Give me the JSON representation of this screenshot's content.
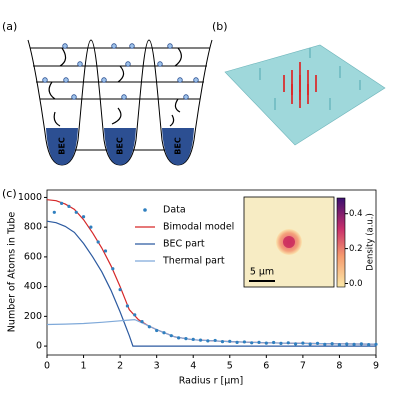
{
  "panels": {
    "a": "(a)",
    "b": "(b)",
    "c": "(c)"
  },
  "diagram": {
    "wells": [
      "BEC",
      "BEC",
      "BEC"
    ]
  },
  "chart_data": {
    "type": "scatter-line",
    "ylabel": "Number of Atoms in Tube",
    "xlabel": "Radius r [μm]",
    "xlim": [
      0,
      9
    ],
    "ylim": [
      -60,
      1050
    ],
    "xticks": [
      0,
      1,
      2,
      3,
      4,
      5,
      6,
      7,
      8,
      9
    ],
    "yticks": [
      0,
      200,
      400,
      600,
      800,
      1000
    ],
    "legend": "upper center",
    "series": [
      {
        "name": "Data",
        "color": "#2f7fbf",
        "kind": "scatter",
        "x": [
          0.2,
          0.4,
          0.6,
          0.8,
          1.0,
          1.2,
          1.4,
          1.6,
          1.8,
          2.0,
          2.2,
          2.4,
          2.6,
          2.8,
          3.0,
          3.2,
          3.4,
          3.6,
          3.8,
          4.0,
          4.2,
          4.4,
          4.6,
          4.8,
          5.0,
          5.2,
          5.4,
          5.6,
          5.8,
          6.0,
          6.2,
          6.4,
          6.6,
          6.8,
          7.0,
          7.2,
          7.4,
          7.6,
          7.8,
          8.0,
          8.2,
          8.4,
          8.6,
          8.8,
          9.0
        ],
        "values": [
          900,
          960,
          940,
          900,
          870,
          800,
          700,
          640,
          520,
          380,
          270,
          210,
          165,
          130,
          105,
          90,
          70,
          55,
          50,
          45,
          40,
          35,
          38,
          30,
          32,
          25,
          28,
          22,
          25,
          20,
          24,
          18,
          22,
          15,
          20,
          14,
          18,
          12,
          16,
          10,
          14,
          12,
          15,
          10,
          12
        ]
      },
      {
        "name": "Bimodal model",
        "color": "#d62728",
        "kind": "line",
        "x": [
          0,
          0.25,
          0.5,
          0.75,
          1,
          1.25,
          1.5,
          1.75,
          2,
          2.25,
          2.5,
          2.75,
          3,
          3.5,
          4,
          5,
          6,
          7,
          8,
          9
        ],
        "values": [
          985,
          978,
          955,
          920,
          850,
          760,
          660,
          540,
          400,
          245,
          178,
          140,
          110,
          62,
          42,
          30,
          22,
          18,
          15,
          13
        ]
      },
      {
        "name": "BEC part",
        "color": "#2c5aa0",
        "kind": "line",
        "x": [
          0,
          0.25,
          0.5,
          0.75,
          1,
          1.25,
          1.5,
          1.75,
          2,
          2.25,
          2.35,
          3,
          4,
          5,
          6,
          7,
          8,
          9
        ],
        "values": [
          840,
          830,
          805,
          765,
          690,
          600,
          500,
          375,
          230,
          70,
          0,
          0,
          0,
          0,
          0,
          0,
          0,
          0
        ]
      },
      {
        "name": "Thermal part",
        "color": "#7fa9d9",
        "kind": "line",
        "x": [
          0,
          0.5,
          1,
          1.5,
          2,
          2.4,
          2.75,
          3,
          3.5,
          4,
          5,
          6,
          7,
          8,
          9
        ],
        "values": [
          145,
          148,
          152,
          160,
          170,
          178,
          140,
          110,
          62,
          42,
          30,
          22,
          18,
          15,
          13
        ]
      }
    ],
    "inset": {
      "scale_bar": "5 μm",
      "colorbar_label": "Density (a.u.)",
      "clim": [
        -0.02,
        0.49
      ],
      "colorbar_ticks": [
        {
          "value": 0,
          "label": "0.0"
        },
        {
          "value": 0.2,
          "label": "0.2"
        },
        {
          "value": 0.4,
          "label": "0.4"
        }
      ]
    }
  }
}
